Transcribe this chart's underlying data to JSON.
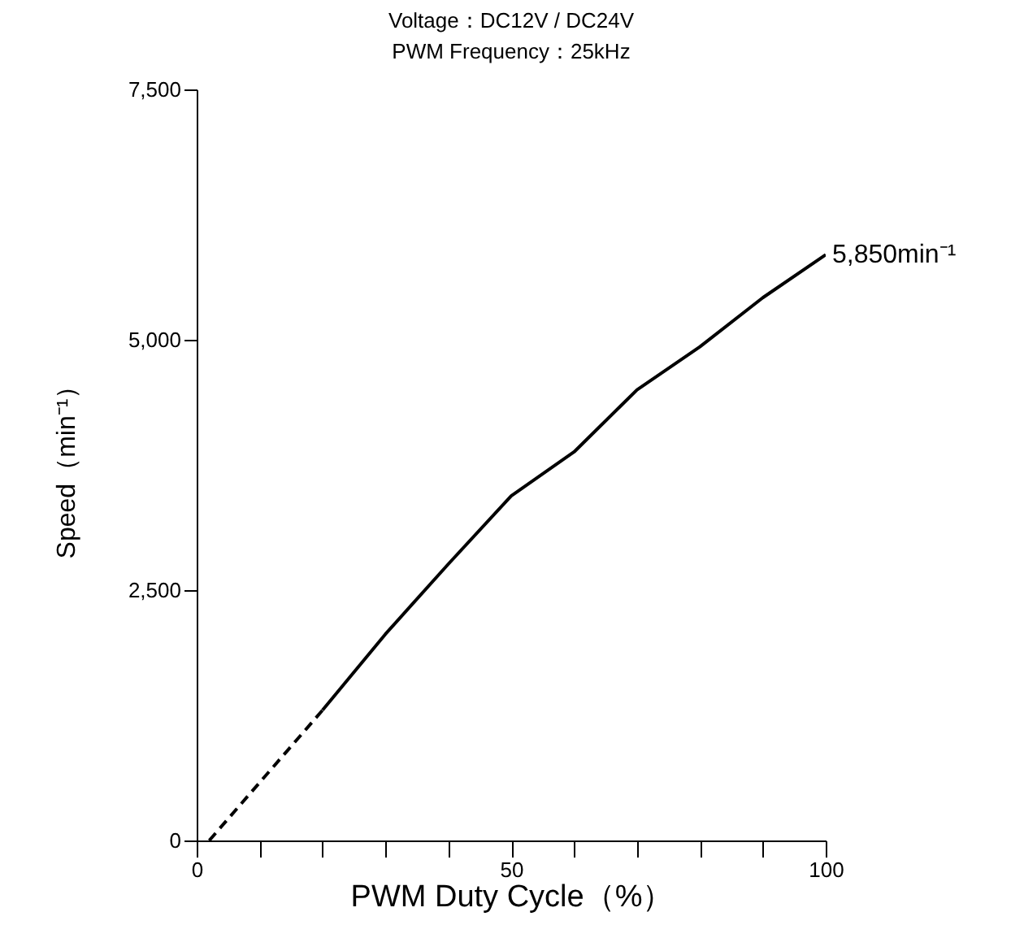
{
  "chart_data": {
    "type": "line",
    "title": "Voltage：DC12V / DC24V",
    "subtitle": "PWM Frequency：25kHz",
    "xlabel": "PWM Duty Cycle（%）",
    "ylabel": "Speed（min⁻¹）",
    "series": [
      {
        "color": "#000000",
        "line_style": "dashed",
        "x": [
          2,
          20
        ],
        "values": [
          0,
          1300
        ]
      },
      {
        "color": "#000000",
        "line_style": "solid",
        "x": [
          20,
          30,
          40,
          50,
          60,
          70,
          80,
          90,
          100
        ],
        "values": [
          1300,
          2060,
          2760,
          3440,
          3880,
          4500,
          4930,
          5420,
          5850
        ]
      }
    ],
    "annotations": [
      {
        "text": "5,850min⁻¹",
        "x": 100,
        "y": 5850
      }
    ],
    "xlim": [
      0,
      100
    ],
    "ylim": [
      0,
      7500
    ],
    "xticks": [
      0,
      {
        "value": 10,
        "label": null
      },
      {
        "value": 20,
        "label": null
      },
      {
        "value": 30,
        "label": null
      },
      {
        "value": 40,
        "label": null
      },
      50,
      {
        "value": 60,
        "label": null
      },
      {
        "value": 70,
        "label": null
      },
      {
        "value": 80,
        "label": null
      },
      {
        "value": 90,
        "label": null
      },
      100
    ],
    "yticks": [
      {
        "value": 0,
        "label": "0"
      },
      {
        "value": 2500,
        "label": "2,500"
      },
      {
        "value": 5000,
        "label": "5,000"
      },
      {
        "value": 7500,
        "label": "7,500"
      }
    ],
    "grid": false
  }
}
